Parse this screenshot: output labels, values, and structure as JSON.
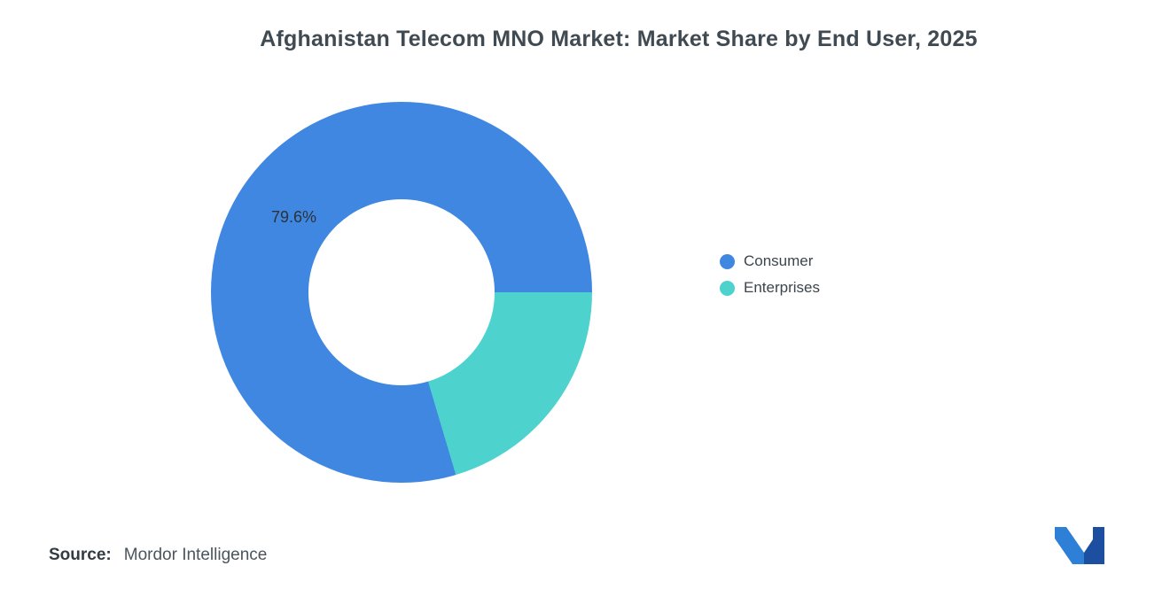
{
  "title": "Afghanistan Telecom MNO Market: Market Share by End User, 2025",
  "source": {
    "label": "Source:",
    "value": "Mordor Intelligence"
  },
  "legend": [
    {
      "label": "Consumer",
      "color": "#3F87E1"
    },
    {
      "label": "Enterprises",
      "color": "#4DD2CE"
    }
  ],
  "chart_data": {
    "type": "pie",
    "title": "Afghanistan Telecom MNO Market: Market Share by End User, 2025",
    "categories": [
      "Consumer",
      "Enterprises"
    ],
    "values": [
      79.6,
      20.4
    ],
    "colors": [
      "#3F87E1",
      "#4DD2CE"
    ],
    "data_labels": [
      "79.6%",
      ""
    ],
    "donut": true,
    "inner_radius_ratio": 0.49,
    "start_angle_deg": 163.44,
    "legend_position": "right"
  },
  "logo": {
    "name": "mordor-intelligence-logo",
    "colors": [
      "#2E7FD6",
      "#1C4FA0"
    ]
  }
}
